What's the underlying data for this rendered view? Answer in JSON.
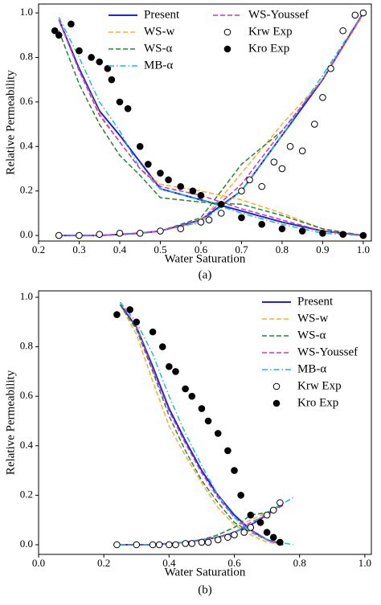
{
  "chart_data": [
    {
      "type": "line",
      "caption": "(a)",
      "x_label": "Water Saturation",
      "y_label": "Relative Permeability",
      "xlim": [
        0.2,
        1.02
      ],
      "ylim": [
        -0.025,
        1.04
      ],
      "xticks": [
        0.2,
        0.3,
        0.4,
        0.5,
        0.6,
        0.7,
        0.8,
        0.9,
        {
          "value": 1.0,
          "label": "1.0"
        }
      ],
      "yticks": [
        {
          "value": 0.0,
          "label": "0.0"
        },
        0.2,
        0.4,
        0.6,
        0.8,
        {
          "value": 1.0,
          "label": "1.0"
        }
      ],
      "legend": "upper center",
      "legend_columns": 2,
      "series": [
        {
          "name": "Present",
          "color": "#2222dd",
          "dash": "solid",
          "curves": [
            {
              "x": [
                0.25,
                0.3,
                0.35,
                0.4,
                0.45,
                0.5,
                0.6,
                0.7,
                0.8,
                0.9,
                1.0
              ],
              "values": [
                0.97,
                0.75,
                0.56,
                0.45,
                0.33,
                0.21,
                0.16,
                0.11,
                0.06,
                0.02,
                0.0
              ]
            },
            {
              "x": [
                0.25,
                0.3,
                0.35,
                0.4,
                0.45,
                0.5,
                0.6,
                0.7,
                0.8,
                0.9,
                1.0
              ],
              "values": [
                0.0,
                0.0,
                0.0,
                0.005,
                0.01,
                0.02,
                0.07,
                0.2,
                0.45,
                0.7,
                1.0
              ]
            }
          ]
        },
        {
          "name": "WS-w",
          "color": "#ffaa33",
          "dash": "dashed",
          "curves": [
            {
              "x": [
                0.25,
                0.3,
                0.35,
                0.4,
                0.45,
                0.5,
                0.6,
                0.7,
                0.8,
                0.9,
                1.0
              ],
              "values": [
                0.97,
                0.74,
                0.55,
                0.42,
                0.3,
                0.23,
                0.2,
                0.16,
                0.1,
                0.03,
                0.0
              ]
            },
            {
              "x": [
                0.25,
                0.3,
                0.35,
                0.4,
                0.45,
                0.5,
                0.6,
                0.7,
                0.8,
                0.9,
                1.0
              ],
              "values": [
                0.0,
                0.0,
                0.0,
                0.005,
                0.01,
                0.02,
                0.06,
                0.28,
                0.5,
                0.7,
                0.99
              ]
            }
          ]
        },
        {
          "name": "WS-α",
          "color": "#22882a",
          "dash": "dashed",
          "curves": [
            {
              "x": [
                0.25,
                0.3,
                0.35,
                0.4,
                0.45,
                0.5,
                0.6,
                0.7,
                0.8,
                0.9,
                1.0
              ],
              "values": [
                0.92,
                0.68,
                0.5,
                0.36,
                0.27,
                0.17,
                0.15,
                0.14,
                0.09,
                0.03,
                0.0
              ]
            },
            {
              "x": [
                0.25,
                0.3,
                0.35,
                0.4,
                0.45,
                0.5,
                0.6,
                0.7,
                0.8,
                0.9,
                1.0
              ],
              "values": [
                0.0,
                0.0,
                0.0,
                0.005,
                0.01,
                0.02,
                0.08,
                0.32,
                0.47,
                0.7,
                1.0
              ]
            }
          ]
        },
        {
          "name": "MB-α",
          "color": "#22bbcc",
          "dash": "dashdot",
          "curves": [
            {
              "x": [
                0.25,
                0.3,
                0.35,
                0.4,
                0.45,
                0.5,
                0.6,
                0.7,
                0.8,
                0.9,
                1.0
              ],
              "values": [
                0.98,
                0.8,
                0.6,
                0.47,
                0.3,
                0.21,
                0.16,
                0.1,
                0.05,
                0.01,
                0.0
              ]
            },
            {
              "x": [
                0.25,
                0.3,
                0.35,
                0.4,
                0.45,
                0.5,
                0.6,
                0.7,
                0.8,
                0.9,
                1.0
              ],
              "values": [
                0.0,
                0.0,
                0.0,
                0.005,
                0.01,
                0.02,
                0.06,
                0.2,
                0.45,
                0.72,
                1.0
              ]
            }
          ]
        },
        {
          "name": "WS-Youssef",
          "color": "#cc33cc",
          "dash": "dashed",
          "curves": [
            {
              "x": [
                0.25,
                0.3,
                0.35,
                0.4,
                0.45,
                0.5,
                0.6,
                0.7,
                0.8,
                0.9,
                1.0
              ],
              "values": [
                0.97,
                0.74,
                0.54,
                0.42,
                0.3,
                0.22,
                0.18,
                0.12,
                0.07,
                0.02,
                0.0
              ]
            },
            {
              "x": [
                0.25,
                0.3,
                0.35,
                0.4,
                0.45,
                0.5,
                0.6,
                0.7,
                0.8,
                0.9,
                1.0
              ],
              "values": [
                0.0,
                0.0,
                0.0,
                0.005,
                0.01,
                0.02,
                0.07,
                0.23,
                0.47,
                0.7,
                1.0
              ]
            }
          ]
        },
        {
          "name": "Krw Exp",
          "color": "#000000",
          "marker": "open",
          "curves": [
            {
              "x": [
                0.25,
                0.3,
                0.35,
                0.4,
                0.45,
                0.5,
                0.55,
                0.6,
                0.62,
                0.65,
                0.7,
                0.72,
                0.75,
                0.78,
                0.8,
                0.82,
                0.85,
                0.88,
                0.9,
                0.92,
                0.95,
                0.98,
                1.0
              ],
              "values": [
                0.0,
                0.0,
                0.005,
                0.01,
                0.01,
                0.02,
                0.03,
                0.06,
                0.07,
                0.1,
                0.2,
                0.25,
                0.22,
                0.33,
                0.3,
                0.4,
                0.38,
                0.5,
                0.62,
                0.75,
                0.92,
                0.99,
                1.0
              ]
            }
          ]
        },
        {
          "name": "Kro Exp",
          "color": "#000000",
          "marker": "filled",
          "curves": [
            {
              "x": [
                0.24,
                0.25,
                0.28,
                0.3,
                0.33,
                0.35,
                0.37,
                0.38,
                0.4,
                0.42,
                0.45,
                0.47,
                0.5,
                0.52,
                0.55,
                0.58,
                0.6,
                0.65,
                0.7,
                0.75,
                0.8,
                0.85,
                0.9,
                0.95,
                1.0
              ],
              "values": [
                0.92,
                0.9,
                0.95,
                0.83,
                0.8,
                0.78,
                0.75,
                0.7,
                0.6,
                0.57,
                0.4,
                0.32,
                0.28,
                0.25,
                0.22,
                0.2,
                0.18,
                0.14,
                0.08,
                0.05,
                0.03,
                0.02,
                0.01,
                0.005,
                0.0
              ]
            }
          ]
        }
      ]
    },
    {
      "type": "line",
      "caption": "(b)",
      "x_label": "Water Saturation",
      "y_label": "Relative Permeability",
      "xlim": [
        0.0,
        1.02
      ],
      "ylim": [
        -0.039,
        1.026
      ],
      "xticks": [
        {
          "value": 0.0,
          "label": "0.0"
        },
        0.2,
        0.4,
        0.6,
        0.8,
        {
          "value": 1.0,
          "label": "1.0"
        }
      ],
      "yticks": [
        {
          "value": 0.0,
          "label": "0.0"
        },
        0.2,
        0.4,
        0.6,
        0.8,
        {
          "value": 1.0,
          "label": "1.0"
        }
      ],
      "legend": "upper right",
      "legend_columns": 1,
      "series": [
        {
          "name": "Present",
          "color": "#2222dd",
          "dash": "solid",
          "curves": [
            {
              "x": [
                0.25,
                0.3,
                0.35,
                0.4,
                0.45,
                0.5,
                0.55,
                0.6,
                0.65,
                0.7,
                0.75
              ],
              "values": [
                0.97,
                0.88,
                0.72,
                0.55,
                0.42,
                0.3,
                0.2,
                0.12,
                0.06,
                0.02,
                0.0
              ]
            },
            {
              "x": [
                0.25,
                0.3,
                0.35,
                0.4,
                0.45,
                0.5,
                0.55,
                0.6,
                0.65,
                0.7,
                0.75
              ],
              "values": [
                0.0,
                0.0,
                0.0,
                0.005,
                0.01,
                0.02,
                0.03,
                0.05,
                0.08,
                0.12,
                0.17
              ]
            }
          ]
        },
        {
          "name": "WS-w",
          "color": "#ffaa33",
          "dash": "dashed",
          "curves": [
            {
              "x": [
                0.25,
                0.3,
                0.35,
                0.4,
                0.45,
                0.5,
                0.55,
                0.6,
                0.65,
                0.7,
                0.75
              ],
              "values": [
                0.97,
                0.85,
                0.66,
                0.48,
                0.36,
                0.25,
                0.15,
                0.08,
                0.04,
                0.01,
                0.0
              ]
            },
            {
              "x": [
                0.25,
                0.3,
                0.35,
                0.4,
                0.45,
                0.5,
                0.55,
                0.6,
                0.65,
                0.7,
                0.75
              ],
              "values": [
                0.0,
                0.0,
                0.0,
                0.005,
                0.01,
                0.02,
                0.04,
                0.07,
                0.1,
                0.13,
                0.16
              ]
            }
          ]
        },
        {
          "name": "WS-α",
          "color": "#22882a",
          "dash": "dashed",
          "curves": [
            {
              "x": [
                0.25,
                0.3,
                0.35,
                0.4,
                0.45,
                0.5,
                0.55,
                0.6,
                0.65,
                0.7,
                0.75
              ],
              "values": [
                0.97,
                0.87,
                0.7,
                0.52,
                0.38,
                0.26,
                0.17,
                0.09,
                0.05,
                0.02,
                0.0
              ]
            },
            {
              "x": [
                0.25,
                0.3,
                0.35,
                0.4,
                0.45,
                0.5,
                0.55,
                0.6,
                0.65,
                0.7,
                0.75
              ],
              "values": [
                0.0,
                0.0,
                0.0,
                0.005,
                0.01,
                0.02,
                0.04,
                0.07,
                0.12,
                0.13,
                0.16
              ]
            }
          ]
        },
        {
          "name": "WS-Youssef",
          "color": "#cc33cc",
          "dash": "dashed",
          "curves": [
            {
              "x": [
                0.25,
                0.3,
                0.35,
                0.4,
                0.45,
                0.5,
                0.55,
                0.6,
                0.65,
                0.7,
                0.75
              ],
              "values": [
                0.98,
                0.88,
                0.71,
                0.54,
                0.41,
                0.29,
                0.19,
                0.11,
                0.06,
                0.02,
                0.0
              ]
            },
            {
              "x": [
                0.25,
                0.3,
                0.35,
                0.4,
                0.45,
                0.5,
                0.55,
                0.6,
                0.65,
                0.7,
                0.75
              ],
              "values": [
                0.0,
                0.0,
                0.0,
                0.005,
                0.01,
                0.02,
                0.03,
                0.05,
                0.09,
                0.12,
                0.16
              ]
            }
          ]
        },
        {
          "name": "MB-α",
          "color": "#22bbcc",
          "dash": "dashdot",
          "curves": [
            {
              "x": [
                0.25,
                0.3,
                0.35,
                0.4,
                0.45,
                0.5,
                0.55,
                0.6,
                0.65,
                0.7,
                0.78
              ],
              "values": [
                0.98,
                0.9,
                0.77,
                0.6,
                0.45,
                0.32,
                0.2,
                0.11,
                0.05,
                0.02,
                0.0
              ]
            },
            {
              "x": [
                0.25,
                0.3,
                0.35,
                0.4,
                0.45,
                0.5,
                0.55,
                0.6,
                0.65,
                0.7,
                0.78
              ],
              "values": [
                0.0,
                0.0,
                0.0,
                0.005,
                0.01,
                0.02,
                0.03,
                0.05,
                0.08,
                0.13,
                0.19
              ]
            }
          ]
        },
        {
          "name": "Krw Exp",
          "color": "#000000",
          "marker": "open",
          "curves": [
            {
              "x": [
                0.24,
                0.3,
                0.35,
                0.37,
                0.4,
                0.42,
                0.45,
                0.47,
                0.5,
                0.52,
                0.55,
                0.58,
                0.6,
                0.63,
                0.65,
                0.68,
                0.7,
                0.72,
                0.74
              ],
              "values": [
                0.0,
                0.0,
                0.0,
                0.0,
                0.0,
                0.0,
                0.005,
                0.005,
                0.01,
                0.01,
                0.02,
                0.03,
                0.04,
                0.05,
                0.07,
                0.09,
                0.12,
                0.14,
                0.17
              ]
            }
          ]
        },
        {
          "name": "Kro Exp",
          "color": "#000000",
          "marker": "filled",
          "curves": [
            {
              "x": [
                0.24,
                0.28,
                0.3,
                0.35,
                0.38,
                0.4,
                0.42,
                0.45,
                0.47,
                0.5,
                0.52,
                0.55,
                0.58,
                0.6,
                0.62,
                0.65,
                0.68,
                0.7,
                0.72,
                0.74
              ],
              "values": [
                0.93,
                0.95,
                0.9,
                0.86,
                0.8,
                0.72,
                0.7,
                0.63,
                0.6,
                0.55,
                0.5,
                0.45,
                0.38,
                0.3,
                0.2,
                0.12,
                0.09,
                0.05,
                0.03,
                0.01
              ]
            }
          ]
        }
      ]
    }
  ]
}
